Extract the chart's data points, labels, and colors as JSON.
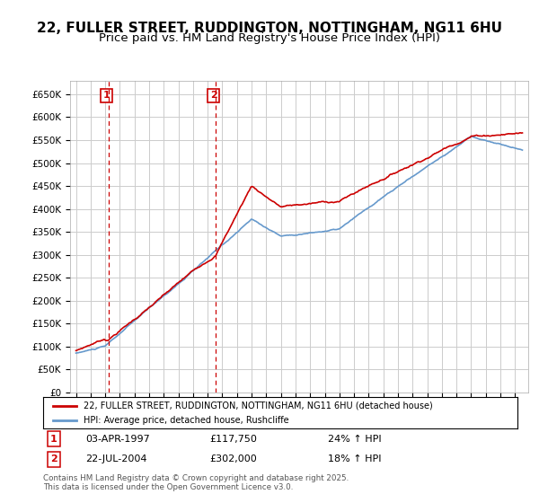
{
  "title": "22, FULLER STREET, RUDDINGTON, NOTTINGHAM, NG11 6HU",
  "subtitle": "Price paid vs. HM Land Registry's House Price Index (HPI)",
  "title_fontsize": 11,
  "subtitle_fontsize": 9.5,
  "ymin": 0,
  "ymax": 680000,
  "yticks": [
    0,
    50000,
    100000,
    150000,
    200000,
    250000,
    300000,
    350000,
    400000,
    450000,
    500000,
    550000,
    600000,
    650000
  ],
  "ytick_labels": [
    "£0",
    "£50K",
    "£100K",
    "£150K",
    "£200K",
    "£250K",
    "£300K",
    "£350K",
    "£400K",
    "£450K",
    "£500K",
    "£550K",
    "£600K",
    "£650K"
  ],
  "line_color_red": "#cc0000",
  "line_color_blue": "#6699cc",
  "grid_color": "#cccccc",
  "background_color": "#ffffff",
  "legend_label_red": "22, FULLER STREET, RUDDINGTON, NOTTINGHAM, NG11 6HU (detached house)",
  "legend_label_blue": "HPI: Average price, detached house, Rushcliffe",
  "marker1_year": 1997.25,
  "marker1_price": 117750,
  "marker2_year": 2004.55,
  "marker2_price": 302000,
  "sale1_date": "03-APR-1997",
  "sale1_price": "£117,750",
  "sale1_hpi": "24% ↑ HPI",
  "sale2_date": "22-JUL-2004",
  "sale2_price": "£302,000",
  "sale2_hpi": "18% ↑ HPI",
  "footer": "Contains HM Land Registry data © Crown copyright and database right 2025.\nThis data is licensed under the Open Government Licence v3.0."
}
